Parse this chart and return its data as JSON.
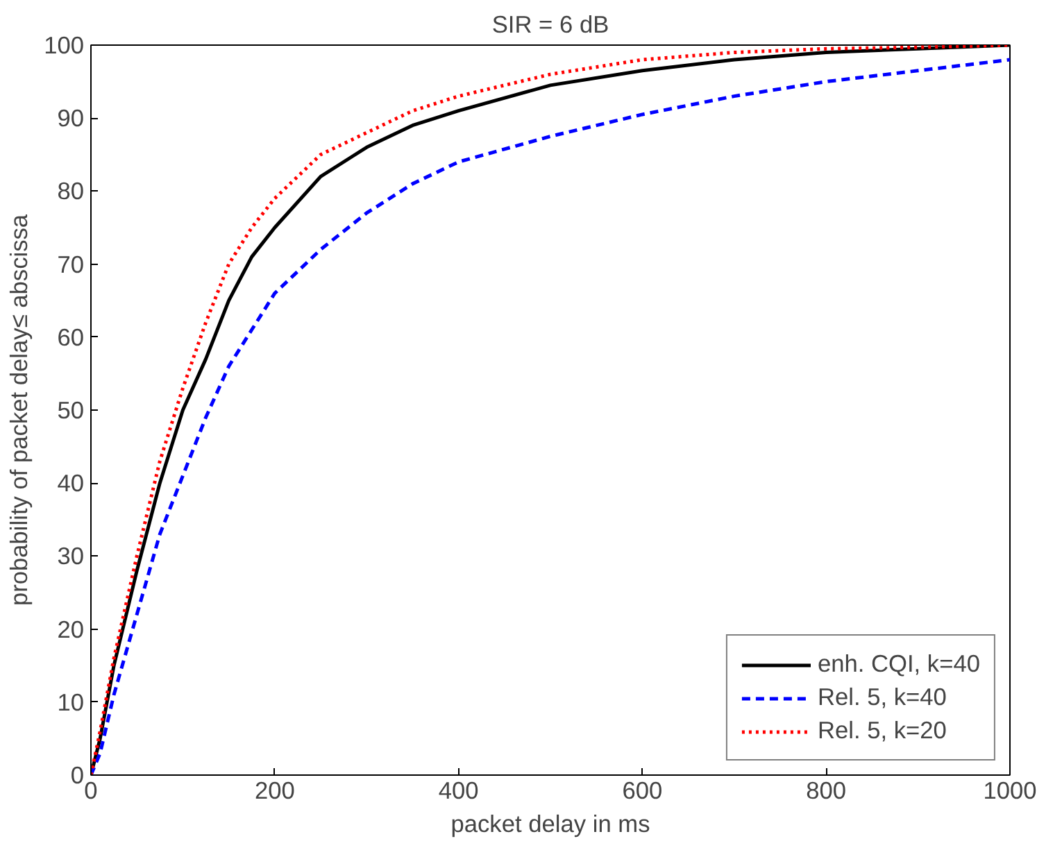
{
  "chart_data": {
    "type": "line",
    "title": "SIR = 6 dB",
    "xlabel": "packet delay in ms",
    "ylabel": "probability of packet delay≤ abscissa",
    "x": [
      0,
      10,
      25,
      50,
      75,
      100,
      125,
      150,
      175,
      200,
      250,
      300,
      350,
      400,
      500,
      600,
      700,
      800,
      900,
      1000
    ],
    "series": [
      {
        "name": "enh. CQI, k=40",
        "color": "#000000",
        "line_style": "solid",
        "values": [
          0,
          5,
          15,
          28,
          40,
          50,
          57,
          65,
          71,
          75,
          82,
          86,
          89,
          91,
          94.5,
          96.5,
          98,
          99,
          99.5,
          100
        ]
      },
      {
        "name": "Rel. 5, k=40",
        "color": "#0000ff",
        "line_style": "dashed",
        "values": [
          0,
          3,
          11,
          22,
          33,
          41,
          49,
          56,
          61,
          66,
          72,
          77,
          81,
          84,
          87.5,
          90.5,
          93,
          95,
          96.5,
          98
        ]
      },
      {
        "name": "Rel. 5, k=20",
        "color": "#ff0000",
        "line_style": "dotted",
        "values": [
          0,
          6,
          16,
          30,
          43,
          53,
          62,
          70,
          75,
          79,
          85,
          88,
          91,
          93,
          96,
          98,
          99,
          99.5,
          99.7,
          100
        ]
      }
    ],
    "xlim": [
      0,
      1000
    ],
    "ylim": [
      0,
      100
    ],
    "xticks": [
      0,
      200,
      400,
      600,
      800,
      1000
    ],
    "yticks": [
      0,
      10,
      20,
      30,
      40,
      50,
      60,
      70,
      80,
      90,
      100
    ],
    "grid": false,
    "legend": "bottom right"
  }
}
